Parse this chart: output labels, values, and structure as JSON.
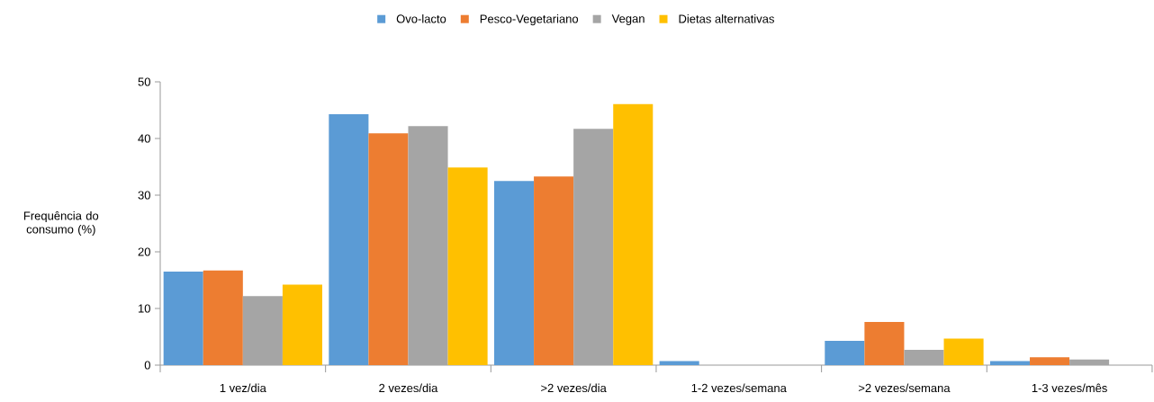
{
  "chart_data": {
    "type": "bar",
    "ylabel": "Frequência do consumo (%)",
    "categories": [
      "1 vez/dia",
      "2 vezes/dia",
      ">2 vezes/dia",
      "1-2 vezes/semana",
      ">2 vezes/semana",
      "1-3 vezes/mês"
    ],
    "series": [
      {
        "name": "Ovo-lacto",
        "color": "#5b9bd5",
        "values": [
          16.5,
          44.3,
          32.5,
          0.7,
          4.3,
          0.7
        ]
      },
      {
        "name": "Pesco-Vegetariano",
        "color": "#ed7d31",
        "values": [
          16.7,
          40.9,
          33.3,
          0,
          7.6,
          1.4
        ]
      },
      {
        "name": "Vegan",
        "color": "#a5a5a5",
        "values": [
          12.2,
          42.2,
          41.7,
          0,
          2.7,
          1.0
        ]
      },
      {
        "name": "Dietas alternativas",
        "color": "#ffc000",
        "values": [
          14.2,
          34.9,
          46.1,
          0,
          4.7,
          0
        ]
      }
    ],
    "ylim": [
      0,
      50
    ],
    "yticks": [
      0,
      10,
      20,
      30,
      40,
      50
    ],
    "legend": "top"
  }
}
